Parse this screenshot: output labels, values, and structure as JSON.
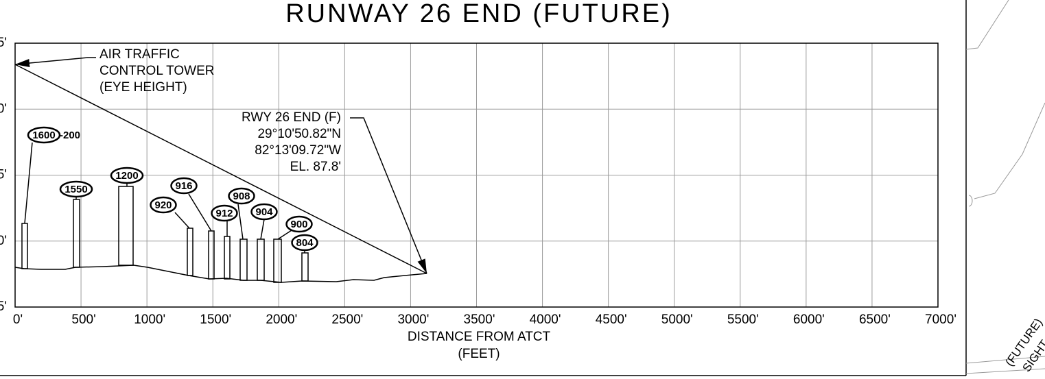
{
  "title": "RUNWAY 26 END (FUTURE)",
  "x_axis": {
    "ticks": [
      "0'",
      "500'",
      "1000'",
      "1500'",
      "2000'",
      "2500'",
      "3000'",
      "3500'",
      "4000'",
      "4500'",
      "5000'",
      "5500'",
      "6000'",
      "6500'",
      "7000'"
    ],
    "label": "DISTANCE FROM ATCT",
    "unit": "(FEET)"
  },
  "y_axis": {
    "ticks": [
      "5'",
      "0'",
      "5'",
      "0'",
      "5'"
    ]
  },
  "tower_note": [
    "AIR TRAFFIC",
    "CONTROL TOWER",
    "(EYE HEIGHT)"
  ],
  "runway_note": [
    "RWY 26 END (F)",
    "29°10'50.82\"N",
    "82°13'09.72\"W",
    "EL. 87.8'"
  ],
  "obstructions": [
    {
      "label": "1600",
      "suffix": "-200"
    },
    {
      "label": "1550"
    },
    {
      "label": "1200"
    },
    {
      "label": "920"
    },
    {
      "label": "916"
    },
    {
      "label": "912"
    },
    {
      "label": "908"
    },
    {
      "label": "904"
    },
    {
      "label": "900"
    },
    {
      "label": "804"
    }
  ],
  "side_note": [
    "(FUTURE)",
    "SIGHT"
  ]
}
